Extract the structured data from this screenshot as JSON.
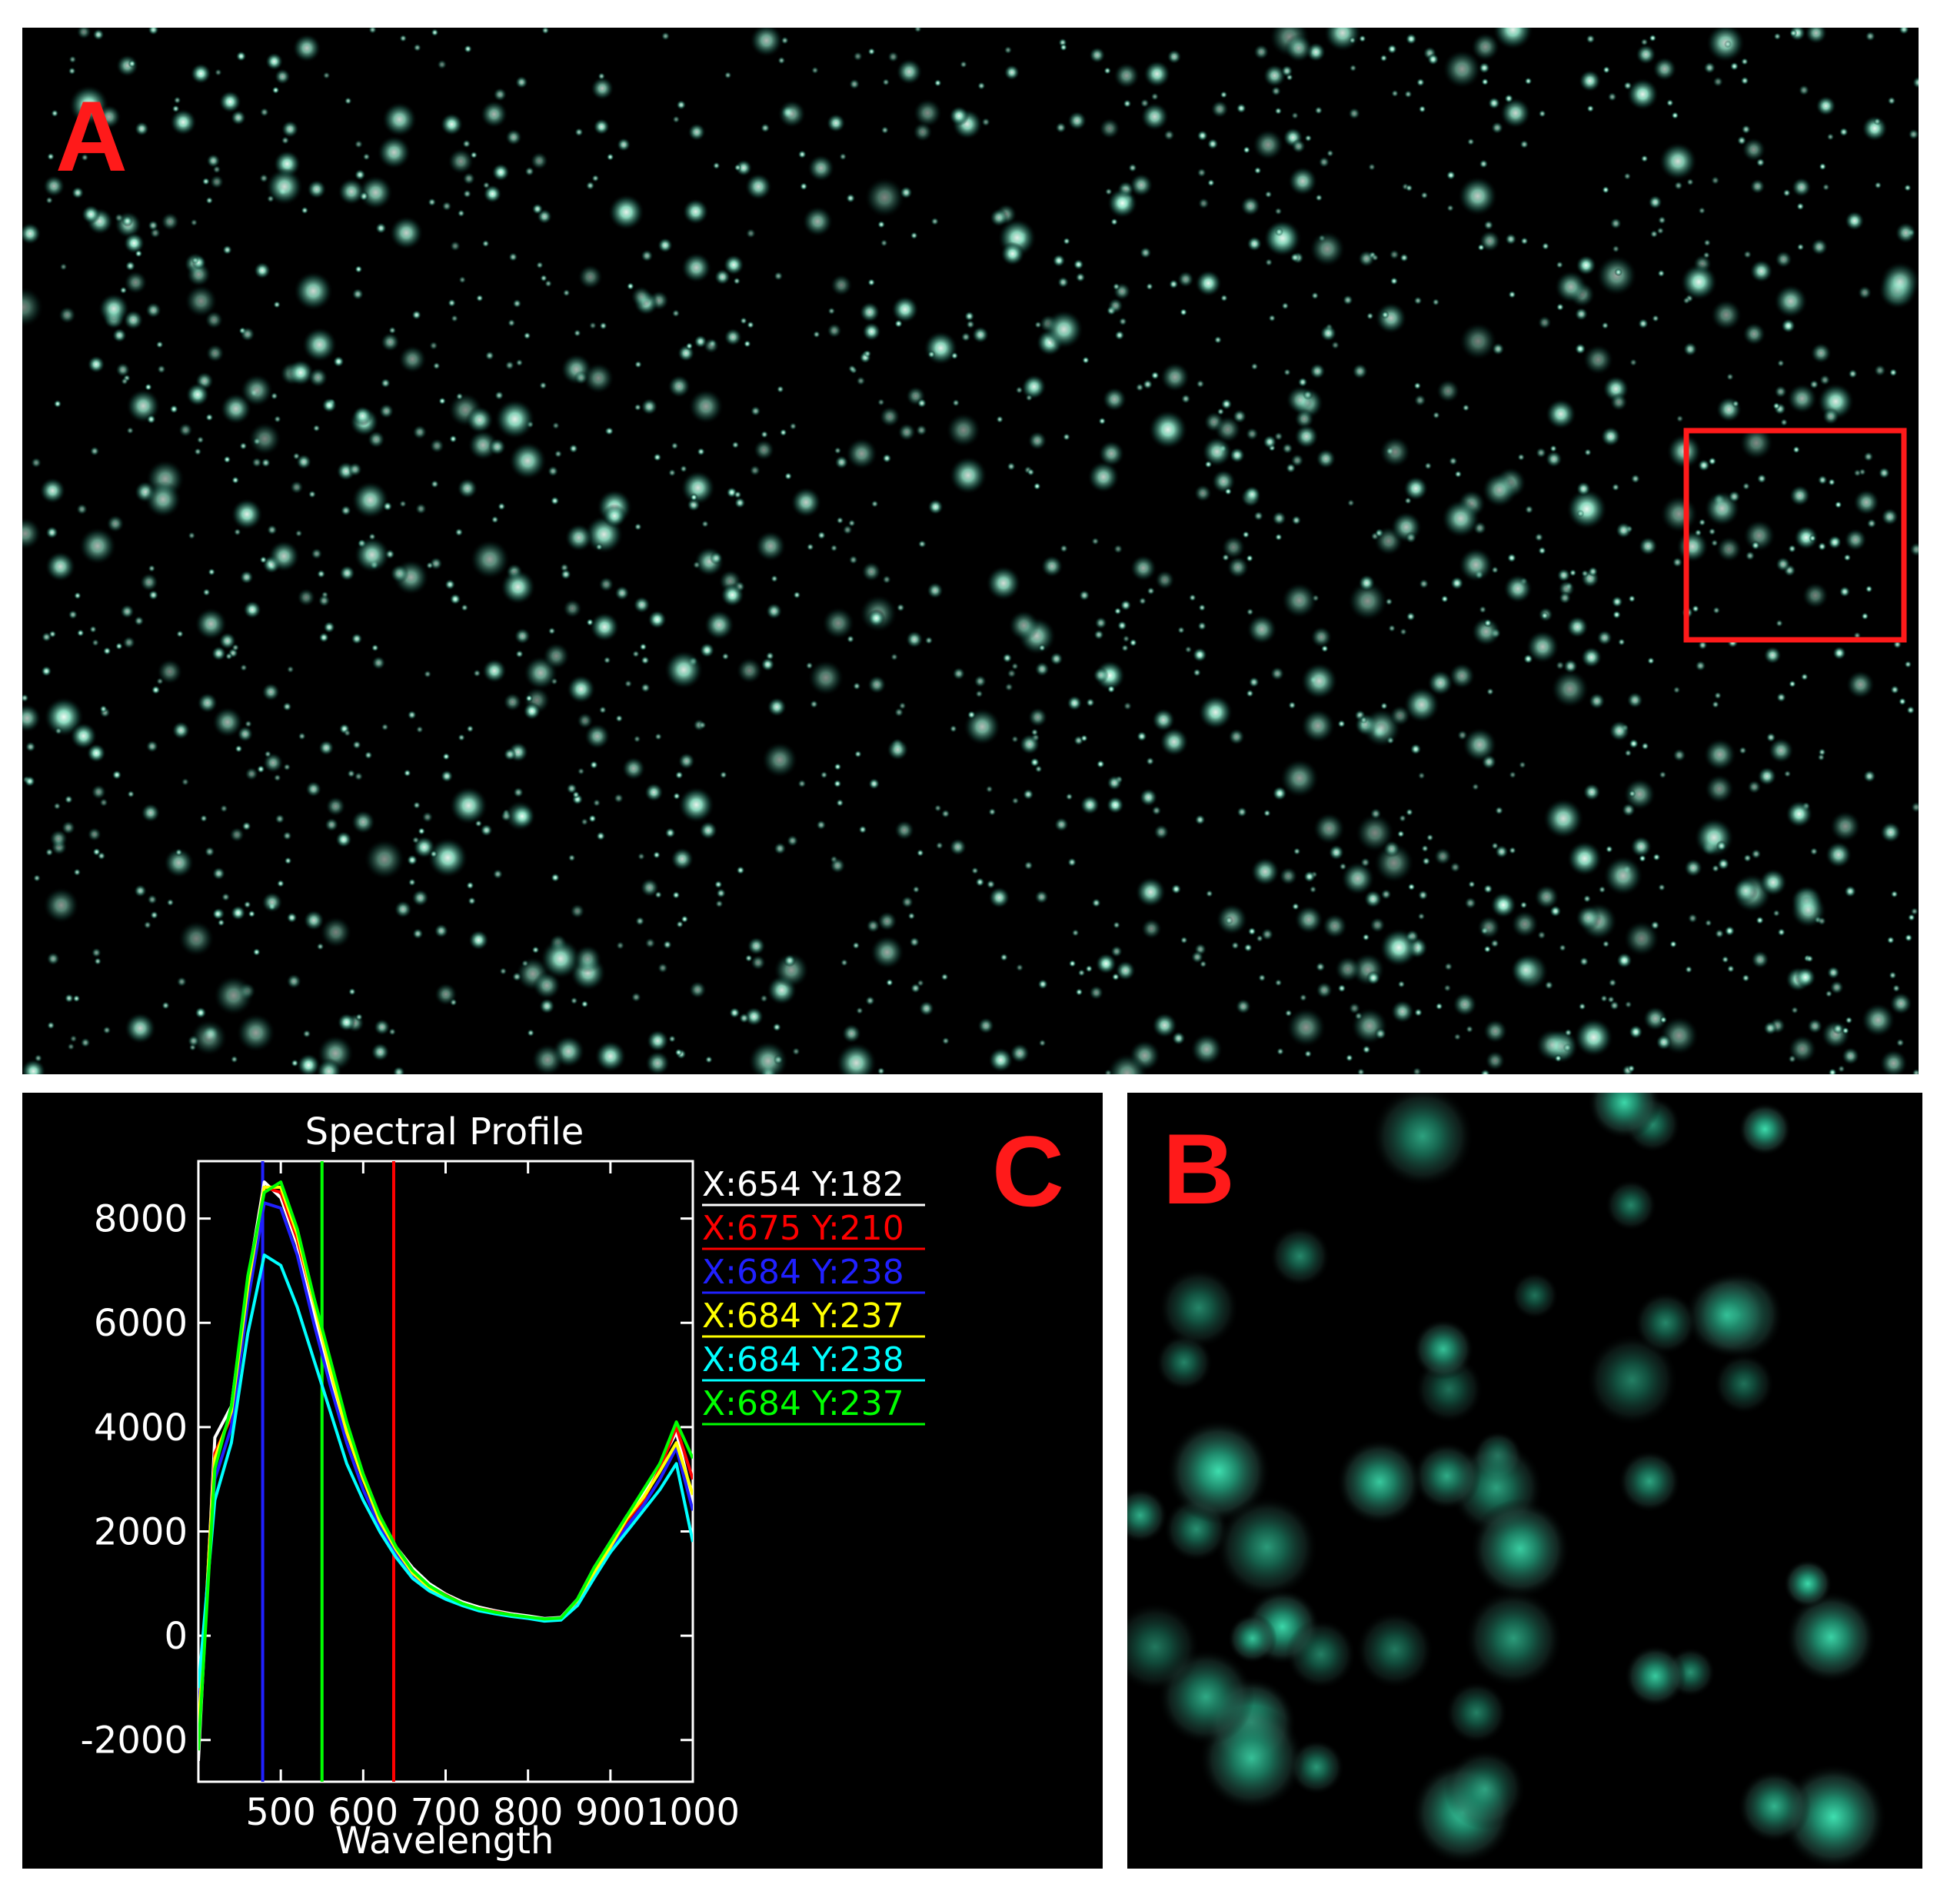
{
  "panels": {
    "a": "A",
    "b": "B",
    "c": "C"
  },
  "chart_data": {
    "type": "line",
    "title": "Spectral Profile",
    "x_label": "Wavelength",
    "x": [
      400,
      420,
      440,
      460,
      480,
      500,
      520,
      540,
      560,
      580,
      600,
      620,
      640,
      660,
      680,
      700,
      720,
      740,
      760,
      780,
      800,
      820,
      840,
      860,
      880,
      900,
      920,
      940,
      960,
      980,
      1000
    ],
    "xlim": [
      400,
      1000
    ],
    "xticks": [
      500,
      600,
      700,
      800,
      900,
      1000
    ],
    "ylim": [
      -2800,
      9100
    ],
    "yticks": [
      -2000,
      0,
      2000,
      4000,
      6000,
      8000
    ],
    "series": [
      {
        "name": "X:654 Y:182",
        "color": "#ffffff",
        "values": [
          -2400,
          3800,
          4400,
          6800,
          8700,
          8400,
          7500,
          6200,
          5000,
          3900,
          3000,
          2300,
          1700,
          1300,
          1000,
          800,
          650,
          550,
          480,
          420,
          380,
          330,
          350,
          700,
          1300,
          1800,
          2300,
          2700,
          3300,
          3900,
          2600
        ]
      },
      {
        "name": "X:675 Y:210",
        "color": "#ff0000",
        "values": [
          -2000,
          3500,
          4200,
          6600,
          8600,
          8500,
          7600,
          6400,
          5200,
          4000,
          3100,
          2300,
          1700,
          1250,
          950,
          780,
          620,
          520,
          460,
          400,
          350,
          300,
          330,
          650,
          1250,
          1700,
          2200,
          2600,
          3200,
          4000,
          3000
        ]
      },
      {
        "name": "X:684 Y:238",
        "color": "#2020ff",
        "values": [
          -1500,
          3000,
          4000,
          6400,
          8300,
          8200,
          7300,
          6000,
          4800,
          3700,
          2800,
          2100,
          1550,
          1150,
          900,
          720,
          600,
          500,
          440,
          380,
          340,
          290,
          320,
          600,
          1150,
          1600,
          2100,
          2500,
          3000,
          3600,
          2400
        ]
      },
      {
        "name": "X:684 Y:237",
        "color": "#ffff00",
        "values": [
          -1800,
          3400,
          4300,
          6700,
          8600,
          8600,
          7700,
          6400,
          5100,
          3900,
          3000,
          2200,
          1650,
          1200,
          920,
          750,
          610,
          510,
          450,
          390,
          350,
          310,
          330,
          680,
          1200,
          1700,
          2250,
          2650,
          3150,
          3700,
          2700
        ]
      },
      {
        "name": "X:684 Y:238",
        "color": "#00ffff",
        "values": [
          -1000,
          2600,
          3700,
          5800,
          7300,
          7100,
          6300,
          5300,
          4300,
          3300,
          2600,
          2000,
          1500,
          1100,
          860,
          700,
          580,
          480,
          420,
          370,
          330,
          280,
          300,
          580,
          1100,
          1600,
          2000,
          2400,
          2800,
          3300,
          1800
        ]
      },
      {
        "name": "X:684 Y:237",
        "color": "#00ff00",
        "values": [
          -2200,
          3200,
          4400,
          6900,
          8500,
          8700,
          7800,
          6500,
          5300,
          4100,
          3100,
          2300,
          1700,
          1250,
          960,
          770,
          620,
          520,
          450,
          400,
          360,
          320,
          340,
          700,
          1300,
          1800,
          2300,
          2800,
          3300,
          4100,
          3400
        ]
      }
    ],
    "markers": [
      {
        "value": 478,
        "color": "#2020ff"
      },
      {
        "value": 550,
        "color": "#00ff00"
      },
      {
        "value": 637,
        "color": "#ff0000"
      }
    ]
  }
}
